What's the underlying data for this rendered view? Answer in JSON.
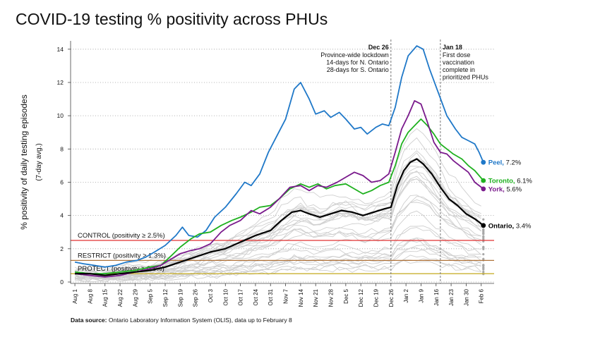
{
  "chart_data": {
    "type": "line",
    "title": "COVID-19 testing % positivity across PHUs",
    "ylabel": "% positivity of daily testing episodes",
    "ylabel2": "(7-day avg.)",
    "ylim": [
      0,
      14.5
    ],
    "yticks": [
      0,
      2,
      4,
      6,
      8,
      10,
      12,
      14
    ],
    "xlim": [
      "2020-07-30",
      "2021-02-12"
    ],
    "xticks": [
      {
        "date": "2020-08-01",
        "label": "Aug 1"
      },
      {
        "date": "2020-08-08",
        "label": "Aug 8"
      },
      {
        "date": "2020-08-15",
        "label": "Aug 15"
      },
      {
        "date": "2020-08-22",
        "label": "Aug 22"
      },
      {
        "date": "2020-08-29",
        "label": "Aug 29"
      },
      {
        "date": "2020-09-05",
        "label": "Sep 5"
      },
      {
        "date": "2020-09-12",
        "label": "Sep 12"
      },
      {
        "date": "2020-09-19",
        "label": "Sep 19"
      },
      {
        "date": "2020-09-26",
        "label": "Sep 26"
      },
      {
        "date": "2020-10-03",
        "label": "Oct 3"
      },
      {
        "date": "2020-10-10",
        "label": "Oct 10"
      },
      {
        "date": "2020-10-17",
        "label": "Oct 17"
      },
      {
        "date": "2020-10-24",
        "label": "Oct 24"
      },
      {
        "date": "2020-10-31",
        "label": "Oct 31"
      },
      {
        "date": "2020-11-07",
        "label": "Nov 7"
      },
      {
        "date": "2020-11-14",
        "label": "Nov 14"
      },
      {
        "date": "2020-11-21",
        "label": "Nov 21"
      },
      {
        "date": "2020-11-28",
        "label": "Nov 28"
      },
      {
        "date": "2020-12-05",
        "label": "Dec 5"
      },
      {
        "date": "2020-12-12",
        "label": "Dec 12"
      },
      {
        "date": "2020-12-19",
        "label": "Dec 19"
      },
      {
        "date": "2020-12-26",
        "label": "Dec 26"
      },
      {
        "date": "2021-01-02",
        "label": "Jan 2"
      },
      {
        "date": "2021-01-09",
        "label": "Jan 9"
      },
      {
        "date": "2021-01-16",
        "label": "Jan 16"
      },
      {
        "date": "2021-01-23",
        "label": "Jan 23"
      },
      {
        "date": "2021-01-30",
        "label": "Jan 30"
      },
      {
        "date": "2021-02-06",
        "label": "Feb 6"
      }
    ],
    "grid": "horizontal dotted",
    "thresholds": [
      {
        "label": "CONTROL (positivity ≥ 2.5%)",
        "value": 2.5,
        "color": "#e03030"
      },
      {
        "label": "RESTRICT (positivity ≥ 1.3%)",
        "value": 1.3,
        "color": "#b0733a"
      },
      {
        "label": "PROTECT (positivity ≥ 0.5%)",
        "value": 0.5,
        "color": "#c8b030"
      }
    ],
    "annotations": [
      {
        "date": "2020-12-26",
        "title": "Dec 26",
        "lines": [
          "Province-wide lockdown",
          "14-days for N. Ontario",
          "28-days for S. Ontario"
        ],
        "align": "right"
      },
      {
        "date": "2021-01-18",
        "title": "Jan 18",
        "lines": [
          "First dose",
          "vaccination",
          "complete in",
          "prioritized PHUs"
        ],
        "align": "left"
      }
    ],
    "series": [
      {
        "name": "Peel",
        "end_label": "7.2%",
        "color": "#1f78c8",
        "width": 1.8,
        "points": [
          [
            "2020-08-01",
            1.2
          ],
          [
            "2020-08-05",
            1.1
          ],
          [
            "2020-08-10",
            1.0
          ],
          [
            "2020-08-15",
            0.9
          ],
          [
            "2020-08-20",
            1.0
          ],
          [
            "2020-08-25",
            1.2
          ],
          [
            "2020-08-30",
            1.3
          ],
          [
            "2020-09-03",
            1.5
          ],
          [
            "2020-09-07",
            1.8
          ],
          [
            "2020-09-12",
            2.2
          ],
          [
            "2020-09-17",
            2.8
          ],
          [
            "2020-09-20",
            3.3
          ],
          [
            "2020-09-23",
            2.8
          ],
          [
            "2020-09-27",
            2.7
          ],
          [
            "2020-10-01",
            3.1
          ],
          [
            "2020-10-05",
            3.9
          ],
          [
            "2020-10-10",
            4.5
          ],
          [
            "2020-10-15",
            5.3
          ],
          [
            "2020-10-19",
            6.0
          ],
          [
            "2020-10-22",
            5.8
          ],
          [
            "2020-10-26",
            6.5
          ],
          [
            "2020-10-30",
            7.8
          ],
          [
            "2020-11-03",
            8.8
          ],
          [
            "2020-11-07",
            9.8
          ],
          [
            "2020-11-11",
            11.6
          ],
          [
            "2020-11-14",
            12.0
          ],
          [
            "2020-11-18",
            11.0
          ],
          [
            "2020-11-21",
            10.1
          ],
          [
            "2020-11-25",
            10.3
          ],
          [
            "2020-11-28",
            9.9
          ],
          [
            "2020-12-02",
            10.2
          ],
          [
            "2020-12-05",
            9.8
          ],
          [
            "2020-12-09",
            9.2
          ],
          [
            "2020-12-12",
            9.3
          ],
          [
            "2020-12-15",
            8.9
          ],
          [
            "2020-12-19",
            9.3
          ],
          [
            "2020-12-22",
            9.5
          ],
          [
            "2020-12-25",
            9.4
          ],
          [
            "2020-12-28",
            10.5
          ],
          [
            "2020-12-31",
            12.3
          ],
          [
            "2021-01-03",
            13.6
          ],
          [
            "2021-01-07",
            14.2
          ],
          [
            "2021-01-10",
            14.0
          ],
          [
            "2021-01-13",
            12.8
          ],
          [
            "2021-01-17",
            11.4
          ],
          [
            "2021-01-21",
            10.0
          ],
          [
            "2021-01-25",
            9.2
          ],
          [
            "2021-01-28",
            8.7
          ],
          [
            "2021-01-31",
            8.5
          ],
          [
            "2021-02-03",
            8.3
          ],
          [
            "2021-02-05",
            7.8
          ],
          [
            "2021-02-07",
            7.2
          ]
        ]
      },
      {
        "name": "Toronto",
        "end_label": "6.1%",
        "color": "#1fb11f",
        "width": 1.8,
        "points": [
          [
            "2020-08-01",
            0.6
          ],
          [
            "2020-08-08",
            0.5
          ],
          [
            "2020-08-15",
            0.5
          ],
          [
            "2020-08-22",
            0.6
          ],
          [
            "2020-08-29",
            0.7
          ],
          [
            "2020-09-05",
            0.9
          ],
          [
            "2020-09-10",
            1.0
          ],
          [
            "2020-09-15",
            1.6
          ],
          [
            "2020-09-19",
            2.1
          ],
          [
            "2020-09-24",
            2.6
          ],
          [
            "2020-09-28",
            2.9
          ],
          [
            "2020-10-03",
            3.0
          ],
          [
            "2020-10-08",
            3.4
          ],
          [
            "2020-10-13",
            3.7
          ],
          [
            "2020-10-17",
            3.9
          ],
          [
            "2020-10-22",
            4.2
          ],
          [
            "2020-10-26",
            4.5
          ],
          [
            "2020-10-31",
            4.6
          ],
          [
            "2020-11-04",
            5.0
          ],
          [
            "2020-11-09",
            5.6
          ],
          [
            "2020-11-14",
            5.9
          ],
          [
            "2020-11-18",
            5.7
          ],
          [
            "2020-11-22",
            5.9
          ],
          [
            "2020-11-26",
            5.6
          ],
          [
            "2020-11-30",
            5.8
          ],
          [
            "2020-12-05",
            5.9
          ],
          [
            "2020-12-09",
            5.6
          ],
          [
            "2020-12-13",
            5.3
          ],
          [
            "2020-12-17",
            5.5
          ],
          [
            "2020-12-21",
            5.8
          ],
          [
            "2020-12-25",
            6.0
          ],
          [
            "2020-12-28",
            7.0
          ],
          [
            "2020-12-31",
            8.3
          ],
          [
            "2021-01-03",
            9.0
          ],
          [
            "2021-01-06",
            9.4
          ],
          [
            "2021-01-09",
            9.8
          ],
          [
            "2021-01-12",
            9.4
          ],
          [
            "2021-01-15",
            8.9
          ],
          [
            "2021-01-18",
            8.3
          ],
          [
            "2021-01-21",
            8.0
          ],
          [
            "2021-01-24",
            7.7
          ],
          [
            "2021-01-28",
            7.4
          ],
          [
            "2021-01-31",
            7.0
          ],
          [
            "2021-02-03",
            6.7
          ],
          [
            "2021-02-07",
            6.1
          ]
        ]
      },
      {
        "name": "York",
        "end_label": "5.6%",
        "color": "#7a1a8c",
        "width": 1.8,
        "points": [
          [
            "2020-08-01",
            0.5
          ],
          [
            "2020-08-08",
            0.4
          ],
          [
            "2020-08-15",
            0.3
          ],
          [
            "2020-08-22",
            0.4
          ],
          [
            "2020-08-29",
            0.6
          ],
          [
            "2020-09-05",
            0.8
          ],
          [
            "2020-09-10",
            1.0
          ],
          [
            "2020-09-15",
            1.4
          ],
          [
            "2020-09-19",
            1.7
          ],
          [
            "2020-09-24",
            1.9
          ],
          [
            "2020-09-28",
            2.0
          ],
          [
            "2020-10-03",
            2.3
          ],
          [
            "2020-10-08",
            3.0
          ],
          [
            "2020-10-12",
            3.4
          ],
          [
            "2020-10-17",
            3.7
          ],
          [
            "2020-10-22",
            4.3
          ],
          [
            "2020-10-26",
            4.1
          ],
          [
            "2020-10-31",
            4.5
          ],
          [
            "2020-11-04",
            5.0
          ],
          [
            "2020-11-09",
            5.7
          ],
          [
            "2020-11-14",
            5.8
          ],
          [
            "2020-11-18",
            5.5
          ],
          [
            "2020-11-22",
            5.8
          ],
          [
            "2020-11-26",
            5.7
          ],
          [
            "2020-12-01",
            6.0
          ],
          [
            "2020-12-05",
            6.3
          ],
          [
            "2020-12-09",
            6.6
          ],
          [
            "2020-12-13",
            6.4
          ],
          [
            "2020-12-17",
            6.0
          ],
          [
            "2020-12-21",
            6.1
          ],
          [
            "2020-12-25",
            6.5
          ],
          [
            "2020-12-28",
            7.8
          ],
          [
            "2020-12-31",
            9.2
          ],
          [
            "2021-01-03",
            10.0
          ],
          [
            "2021-01-06",
            10.9
          ],
          [
            "2021-01-09",
            10.7
          ],
          [
            "2021-01-12",
            9.6
          ],
          [
            "2021-01-15",
            8.4
          ],
          [
            "2021-01-18",
            7.8
          ],
          [
            "2021-01-21",
            7.7
          ],
          [
            "2021-01-24",
            7.3
          ],
          [
            "2021-01-28",
            6.9
          ],
          [
            "2021-01-31",
            6.6
          ],
          [
            "2021-02-03",
            6.0
          ],
          [
            "2021-02-07",
            5.6
          ]
        ]
      },
      {
        "name": "Ontario",
        "end_label": "3.4%",
        "color": "#000000",
        "width": 2.2,
        "points": [
          [
            "2020-08-01",
            0.5
          ],
          [
            "2020-08-08",
            0.5
          ],
          [
            "2020-08-15",
            0.4
          ],
          [
            "2020-08-22",
            0.5
          ],
          [
            "2020-08-29",
            0.6
          ],
          [
            "2020-09-05",
            0.7
          ],
          [
            "2020-09-12",
            0.9
          ],
          [
            "2020-09-19",
            1.2
          ],
          [
            "2020-09-26",
            1.5
          ],
          [
            "2020-10-03",
            1.8
          ],
          [
            "2020-10-10",
            2.0
          ],
          [
            "2020-10-17",
            2.4
          ],
          [
            "2020-10-24",
            2.8
          ],
          [
            "2020-10-31",
            3.1
          ],
          [
            "2020-11-05",
            3.7
          ],
          [
            "2020-11-10",
            4.2
          ],
          [
            "2020-11-14",
            4.3
          ],
          [
            "2020-11-18",
            4.1
          ],
          [
            "2020-11-23",
            3.9
          ],
          [
            "2020-11-28",
            4.1
          ],
          [
            "2020-12-03",
            4.3
          ],
          [
            "2020-12-08",
            4.2
          ],
          [
            "2020-12-13",
            4.0
          ],
          [
            "2020-12-18",
            4.2
          ],
          [
            "2020-12-23",
            4.4
          ],
          [
            "2020-12-26",
            4.5
          ],
          [
            "2020-12-29",
            5.8
          ],
          [
            "2021-01-01",
            6.7
          ],
          [
            "2021-01-04",
            7.2
          ],
          [
            "2021-01-07",
            7.4
          ],
          [
            "2021-01-10",
            7.1
          ],
          [
            "2021-01-14",
            6.5
          ],
          [
            "2021-01-18",
            5.7
          ],
          [
            "2021-01-22",
            5.0
          ],
          [
            "2021-01-26",
            4.6
          ],
          [
            "2021-01-30",
            4.1
          ],
          [
            "2021-02-03",
            3.8
          ],
          [
            "2021-02-07",
            3.4
          ]
        ]
      }
    ]
  },
  "source_prefix": "Data source:",
  "source_text": " Ontario Laboratory Information System (OLIS), data up to February 8"
}
